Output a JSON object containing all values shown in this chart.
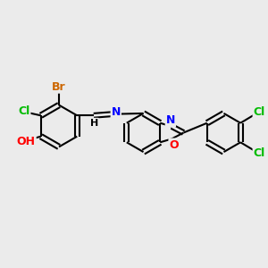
{
  "background_color": "#ebebeb",
  "bond_color": "#000000",
  "bond_width": 1.5,
  "atom_colors": {
    "C": "#000000",
    "H": "#000000",
    "O": "#ff0000",
    "N": "#0000ff",
    "Cl": "#00bb00",
    "Br": "#cc6600"
  },
  "font_size": 9
}
